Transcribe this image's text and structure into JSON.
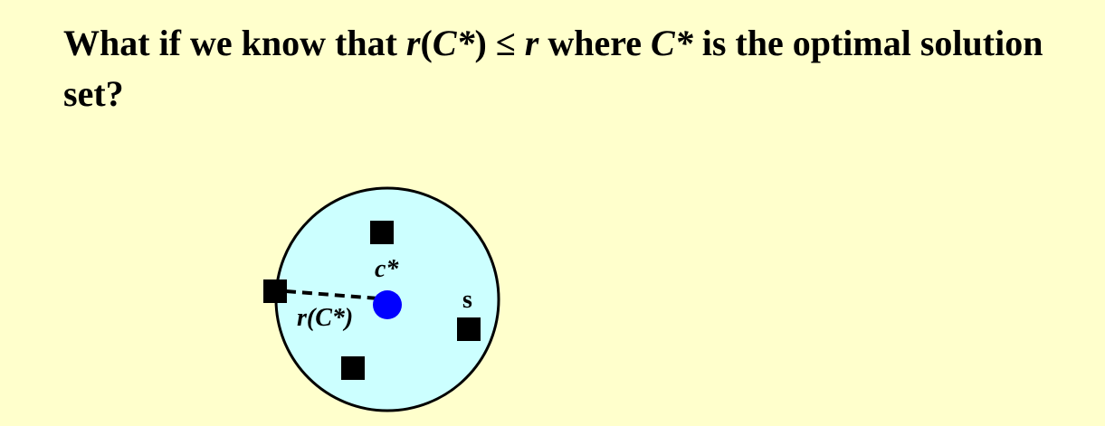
{
  "title": {
    "part1": "What if we know that ",
    "r1": "r",
    "paren_open": "(",
    "c_star": "C*",
    "paren_close": ")",
    "leq": " ≤ ",
    "r2": "r",
    "part2": " where ",
    "c_star_2": "C*",
    "part3": " is the optimal solution set?"
  },
  "diagram": {
    "center_label": "c*",
    "radius_label_r": "r",
    "radius_label_rest": "(C*)",
    "point_label": "s",
    "colors": {
      "background": "#ffffcc",
      "ball_fill": "#ccffff",
      "center_point": "#0000ff",
      "points": "#000000"
    }
  }
}
